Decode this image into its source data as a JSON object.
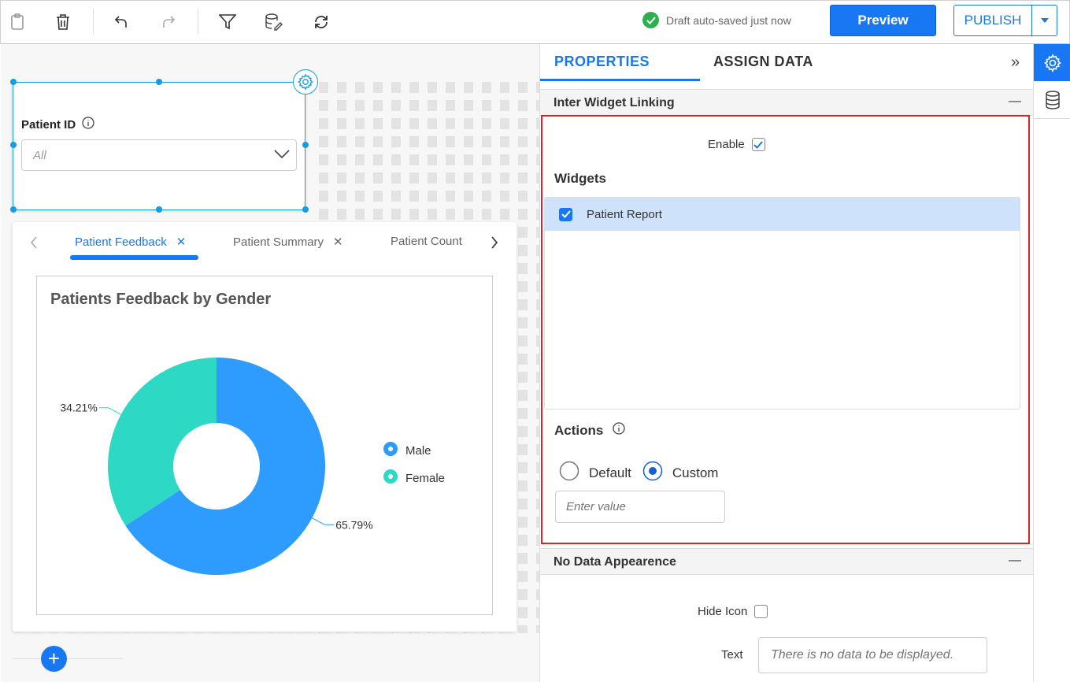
{
  "toolbar": {
    "icons": [
      "clipboard-icon",
      "trash-icon",
      "undo-icon",
      "redo-icon",
      "filter-icon",
      "datasource-edit-icon",
      "refresh-icon"
    ],
    "status": "Draft auto-saved just now",
    "preview_label": "Preview",
    "publish_label": "PUBLISH"
  },
  "filter_widget": {
    "label": "Patient ID",
    "value": "All"
  },
  "tab_widget": {
    "tabs": [
      "Patient Feedback",
      "Patient Summary",
      "Patient Count"
    ],
    "active": "Patient Feedback"
  },
  "chart_data": {
    "type": "pie",
    "variant": "donut",
    "title": "Patients Feedback by Gender",
    "categories": [
      "Male",
      "Female"
    ],
    "values": [
      65.79,
      34.21
    ],
    "labels": [
      "65.79%",
      "34.21%"
    ],
    "colors": [
      "#2e9bff",
      "#2dd9c4"
    ],
    "legend_position": "right"
  },
  "panel": {
    "tabs": [
      "PROPERTIES",
      "ASSIGN DATA"
    ],
    "active_tab": "PROPERTIES",
    "inter_widget": {
      "title": "Inter Widget Linking",
      "enable_label": "Enable",
      "enabled": true,
      "widgets_label": "Widgets",
      "widgets": [
        {
          "name": "Patient Report",
          "checked": true
        }
      ],
      "actions_label": "Actions",
      "actions": [
        "Default",
        "Custom"
      ],
      "selected_action": "Custom",
      "value_placeholder": "Enter value"
    },
    "no_data": {
      "title": "No Data Appearence",
      "hide_icon_label": "Hide Icon",
      "hide_icon": false,
      "text_label": "Text",
      "text_placeholder": "There is no data to be displayed."
    }
  },
  "accent": "#1877f2"
}
